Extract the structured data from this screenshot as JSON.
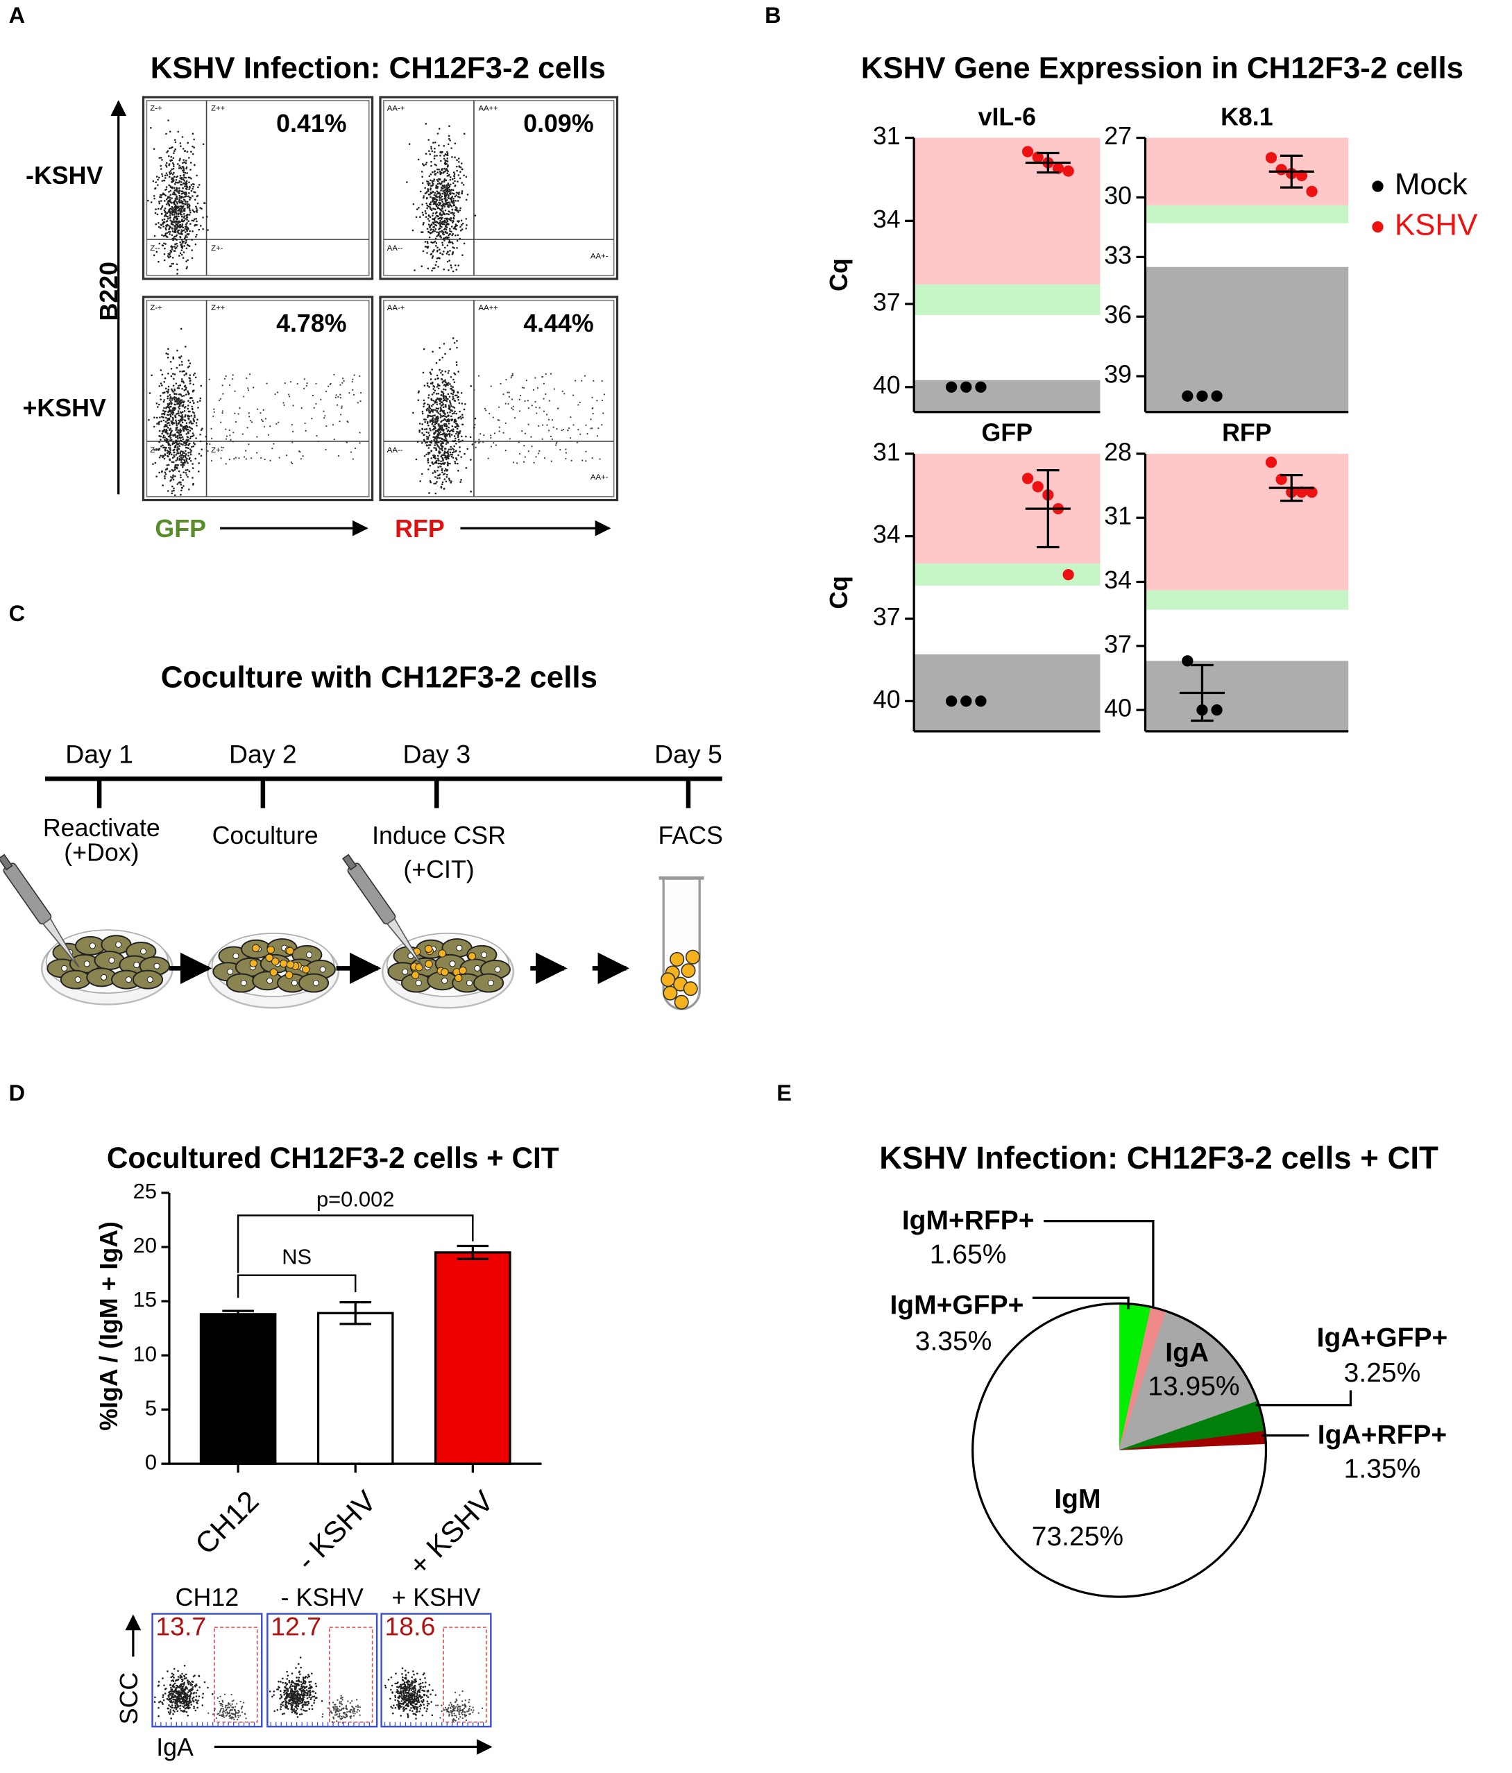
{
  "panel_labels": [
    "A",
    "B",
    "C",
    "D",
    "E"
  ],
  "panel_a": {
    "title": "KSHV Infection: CH12F3-2 cells",
    "row_labels": [
      "-KSHV",
      "+KSHV"
    ],
    "y_axis_label": "B220",
    "x_axis_labels": [
      "GFP",
      "RFP"
    ],
    "plots": [
      {
        "percent": "0.41%",
        "quadrants": [
          "Z-+",
          "Z++",
          "Z--",
          "Z+-"
        ]
      },
      {
        "percent": "0.09%",
        "quadrants": [
          "AA-+",
          "AA++",
          "AA--",
          "AA+-"
        ]
      },
      {
        "percent": "4.78%",
        "quadrants": [
          "Z-+",
          "Z++",
          "Z--",
          "Z+-"
        ]
      },
      {
        "percent": "4.44%",
        "quadrants": [
          "AA-+",
          "AA++",
          "AA--",
          "AA+-"
        ]
      }
    ]
  },
  "panel_b": {
    "title": "KSHV Gene Expression in CH12F3-2 cells"
  },
  "panel_c": {
    "title": "Coculture with CH12F3-2 cells",
    "days": [
      {
        "day": "Day 1",
        "step": [
          "Reactivate",
          "(+Dox)"
        ]
      },
      {
        "day": "Day 2",
        "step": [
          "Coculture"
        ]
      },
      {
        "day": "Day 3",
        "step": [
          "Induce CSR",
          "(+CIT)"
        ]
      },
      {
        "day": "Day 5",
        "step": [
          "FACS"
        ]
      }
    ]
  },
  "panel_d_flow": {
    "labels": [
      "CH12",
      "- KSHV",
      "+ KSHV"
    ],
    "percents": [
      13.7,
      12.7,
      18.6
    ],
    "y_axis_label": "SCC",
    "x_axis_label": "IgA"
  },
  "chart_data": [
    {
      "type": "dot",
      "title": "vIL-6",
      "ylabel": "Cq",
      "ylim": [
        31,
        40.9
      ],
      "y_inverted": true,
      "yticks": [
        31,
        34,
        37,
        40
      ],
      "bands": [
        {
          "from": 31,
          "to": 36.3,
          "color": "#ffc8c8"
        },
        {
          "from": 36.3,
          "to": 37.4,
          "color": "#c6f5c6"
        },
        {
          "from": 39.75,
          "to": 40.9,
          "color": "#adadad"
        }
      ],
      "series": [
        {
          "name": "Mock",
          "color": "#000000",
          "values": [
            40,
            40,
            40
          ]
        },
        {
          "name": "KSHV",
          "color": "#ee1111",
          "values": [
            31.5,
            31.7,
            31.9,
            32.1,
            32.2
          ],
          "mean": 31.9,
          "error": 0.35
        }
      ]
    },
    {
      "type": "dot",
      "title": "K8.1",
      "ylim": [
        27,
        40.8
      ],
      "y_inverted": true,
      "yticks": [
        27,
        30,
        33,
        36,
        39
      ],
      "bands": [
        {
          "from": 27,
          "to": 30.4,
          "color": "#ffc8c8"
        },
        {
          "from": 30.4,
          "to": 31.3,
          "color": "#c6f5c6"
        },
        {
          "from": 33.5,
          "to": 40.8,
          "color": "#adadad"
        }
      ],
      "series": [
        {
          "name": "Mock",
          "color": "#000000",
          "values": [
            40,
            40,
            40
          ]
        },
        {
          "name": "KSHV",
          "color": "#ee1111",
          "values": [
            28.0,
            28.6,
            28.8,
            28.9,
            29.7
          ],
          "mean": 28.7,
          "error": 0.8
        }
      ]
    },
    {
      "type": "dot",
      "title": "GFP",
      "ylabel": "Cq",
      "ylim": [
        31,
        41.1
      ],
      "y_inverted": true,
      "yticks": [
        31,
        34,
        37,
        40
      ],
      "bands": [
        {
          "from": 31,
          "to": 35.0,
          "color": "#ffc8c8"
        },
        {
          "from": 35.0,
          "to": 35.8,
          "color": "#c6f5c6"
        },
        {
          "from": 38.3,
          "to": 41.1,
          "color": "#adadad"
        }
      ],
      "series": [
        {
          "name": "Mock",
          "color": "#000000",
          "values": [
            40,
            40,
            40
          ]
        },
        {
          "name": "KSHV",
          "color": "#ee1111",
          "values": [
            31.9,
            32.2,
            32.5,
            33.0,
            35.4
          ],
          "mean": 33.0,
          "error": 1.4
        }
      ]
    },
    {
      "type": "dot",
      "title": "RFP",
      "ylim": [
        28,
        41
      ],
      "y_inverted": true,
      "yticks": [
        28,
        31,
        34,
        37,
        40
      ],
      "bands": [
        {
          "from": 28,
          "to": 34.4,
          "color": "#ffc8c8"
        },
        {
          "from": 34.4,
          "to": 35.3,
          "color": "#c6f5c6"
        },
        {
          "from": 37.7,
          "to": 41,
          "color": "#adadad"
        }
      ],
      "series": [
        {
          "name": "Mock",
          "color": "#000000",
          "values": [
            37.7,
            40,
            40
          ],
          "mean": 39.2,
          "error": 1.3
        },
        {
          "name": "KSHV",
          "color": "#ee1111",
          "values": [
            28.4,
            29.2,
            29.8,
            29.8,
            29.8
          ],
          "mean": 29.6,
          "error": 0.6
        }
      ]
    },
    {
      "type": "bar",
      "title": "Cocultured CH12F3-2 cells + CIT",
      "ylabel": "%IgA / (IgM + IgA)",
      "categories": [
        "CH12",
        "- KSHV",
        "+ KSHV"
      ],
      "values": [
        13.8,
        13.9,
        19.5
      ],
      "errors": [
        0.3,
        1.0,
        0.6
      ],
      "colors": [
        "#000000",
        "#ffffff",
        "#ee0000"
      ],
      "ylim": [
        0,
        25
      ],
      "yticks": [
        0,
        5,
        10,
        15,
        20,
        25
      ],
      "annotations": [
        "NS",
        "p=0.002"
      ]
    },
    {
      "type": "pie",
      "title": "KSHV Infection: CH12F3-2 cells + CIT",
      "labels": [
        "IgM+GFP+",
        "IgM+RFP+",
        "IgA",
        "IgA+GFP+",
        "IgA+RFP+",
        "IgM"
      ],
      "values": [
        3.35,
        1.65,
        13.95,
        3.25,
        1.35,
        73.25
      ],
      "value_labels": [
        "3.35%",
        "1.65%",
        "13.95%",
        "3.25%",
        "1.35%",
        "73.25%"
      ],
      "colors": [
        "#00ee00",
        "#f08a8a",
        "#a8a8a8",
        "#00800a",
        "#a00000",
        "#ffffff"
      ]
    }
  ]
}
